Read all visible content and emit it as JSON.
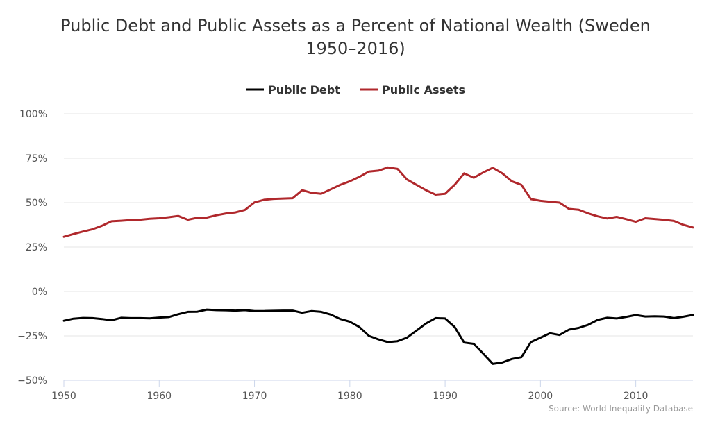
{
  "chart_data": {
    "type": "line",
    "title_line1": "Public Debt and Public Assets as a Percent of National Wealth (Sweden",
    "title_line2": "1950–2016)",
    "xlabel": "",
    "ylabel": "",
    "xlim": [
      1950,
      2016
    ],
    "ylim": [
      -50,
      100
    ],
    "x_ticks": [
      1950,
      1960,
      1970,
      1980,
      1990,
      2000,
      2010
    ],
    "x_tick_labels": [
      "1950",
      "1960",
      "1970",
      "1980",
      "1990",
      "2000",
      "2010"
    ],
    "y_ticks": [
      -50,
      -25,
      0,
      25,
      50,
      75,
      100
    ],
    "y_tick_labels": [
      "−50%",
      "−25%",
      "0%",
      "25%",
      "50%",
      "75%",
      "100%"
    ],
    "grid": "horizontal",
    "legend_placement": "top-center",
    "source": "Source: World Inequality Database",
    "x": [
      1950,
      1951,
      1952,
      1953,
      1954,
      1955,
      1956,
      1957,
      1958,
      1959,
      1960,
      1961,
      1962,
      1963,
      1964,
      1965,
      1966,
      1967,
      1968,
      1969,
      1970,
      1971,
      1972,
      1973,
      1974,
      1975,
      1976,
      1977,
      1978,
      1979,
      1980,
      1981,
      1982,
      1983,
      1984,
      1985,
      1986,
      1987,
      1988,
      1989,
      1990,
      1991,
      1992,
      1993,
      1994,
      1995,
      1996,
      1997,
      1998,
      1999,
      2000,
      2001,
      2002,
      2003,
      2004,
      2005,
      2006,
      2007,
      2008,
      2009,
      2010,
      2011,
      2012,
      2013,
      2014,
      2015,
      2016
    ],
    "series": [
      {
        "name": "Public Debt",
        "color": "#000000",
        "values": [
          -16.5,
          -15.3,
          -14.9,
          -15.0,
          -15.5,
          -16.2,
          -14.8,
          -15.0,
          -15.0,
          -15.1,
          -14.7,
          -14.4,
          -12.8,
          -11.5,
          -11.4,
          -10.2,
          -10.5,
          -10.6,
          -10.8,
          -10.5,
          -11.0,
          -11.0,
          -10.9,
          -10.8,
          -10.8,
          -12.0,
          -11.0,
          -11.5,
          -13.0,
          -15.5,
          -17.0,
          -20.0,
          -25.0,
          -27.0,
          -28.5,
          -28.0,
          -26.0,
          -22.0,
          -18.0,
          -15.0,
          -15.2,
          -20.0,
          -28.8,
          -29.5,
          -35.0,
          -40.8,
          -40.0,
          -38.0,
          -37.0,
          -28.5,
          -26.0,
          -23.5,
          -24.5,
          -21.5,
          -20.5,
          -18.8,
          -16.0,
          -14.8,
          -15.2,
          -14.3,
          -13.3,
          -14.1,
          -14.0,
          -14.1,
          -15.0,
          -14.2,
          -13.2
        ]
      },
      {
        "name": "Public Assets",
        "color": "#b0282c",
        "values": [
          30.8,
          32.3,
          33.7,
          35.0,
          37.0,
          39.5,
          39.8,
          40.2,
          40.4,
          40.9,
          41.2,
          41.8,
          42.5,
          40.4,
          41.5,
          41.6,
          42.9,
          43.9,
          44.5,
          45.9,
          50.1,
          51.6,
          52.1,
          52.3,
          52.5,
          57.0,
          55.5,
          55.0,
          57.5,
          60.0,
          62.0,
          64.5,
          67.5,
          68.0,
          69.8,
          69.0,
          63.0,
          60.0,
          57.0,
          54.5,
          55.0,
          60.0,
          66.5,
          64.0,
          67.0,
          69.6,
          66.5,
          62.0,
          60.0,
          52.0,
          51.0,
          50.5,
          50.0,
          46.5,
          46.0,
          44.0,
          42.3,
          41.1,
          42.0,
          40.7,
          39.2,
          41.2,
          40.8,
          40.3,
          39.7,
          37.5,
          36.0
        ]
      }
    ]
  }
}
